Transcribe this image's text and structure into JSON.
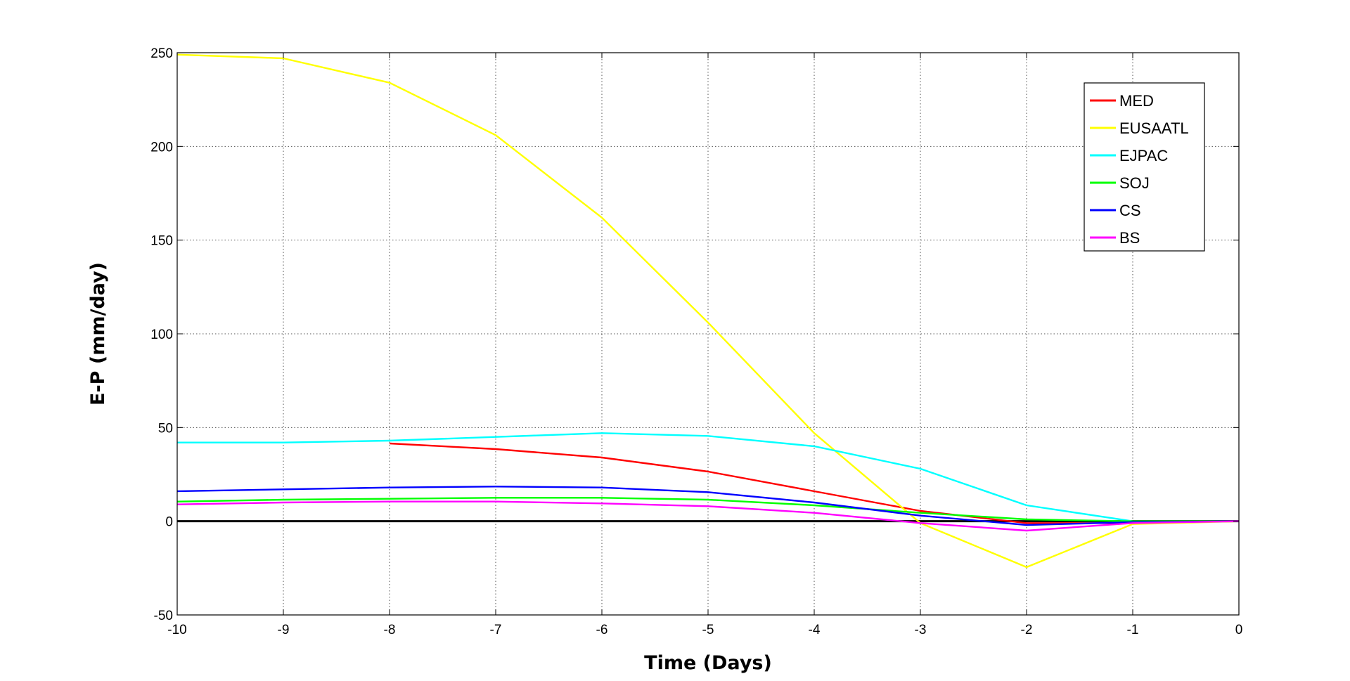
{
  "chart_data": {
    "type": "line",
    "xlabel": "Time (Days)",
    "ylabel": "E-P (mm/day)",
    "xlim": [
      -10,
      0
    ],
    "ylim": [
      -50,
      250
    ],
    "xticks": [
      "-10",
      "-9",
      "-8",
      "-7",
      "-6",
      "-5",
      "-4",
      "-3",
      "-2",
      "-1",
      "0"
    ],
    "yticks": [
      "250",
      "200",
      "150",
      "100",
      "50",
      "0",
      "-50"
    ],
    "x": [
      -10,
      -9,
      -8,
      -7,
      -6,
      -5,
      -4,
      -3,
      -2,
      -1,
      0
    ],
    "grid": true,
    "legend_position": "top-right",
    "zero_line": 0,
    "series": [
      {
        "name": "MED",
        "color": "#ff0000",
        "values": [
          null,
          null,
          41.5,
          38.5,
          34,
          26.5,
          16,
          5.5,
          -1,
          -1,
          0
        ]
      },
      {
        "name": "EUSAATL",
        "color": "#ffff00",
        "values": [
          249,
          247,
          234,
          206,
          162,
          106,
          47,
          -1,
          -24.5,
          -1.5,
          0
        ]
      },
      {
        "name": "EJPAC",
        "color": "#00ffff",
        "values": [
          42,
          42,
          43,
          45,
          47,
          45.5,
          40,
          28,
          8.5,
          0,
          0
        ]
      },
      {
        "name": "SOJ",
        "color": "#00ff00",
        "values": [
          10.5,
          11.5,
          12,
          12.5,
          12.5,
          11.5,
          8.5,
          4.5,
          1,
          0,
          0
        ]
      },
      {
        "name": "CS",
        "color": "#0000ff",
        "values": [
          16,
          17,
          18,
          18.5,
          18,
          15.5,
          10,
          3,
          -2,
          -0.5,
          0
        ]
      },
      {
        "name": "BS",
        "color": "#ff00ff",
        "values": [
          9,
          10,
          10.5,
          10.5,
          9.5,
          8,
          4.5,
          -1,
          -5,
          -1,
          0
        ]
      }
    ]
  }
}
